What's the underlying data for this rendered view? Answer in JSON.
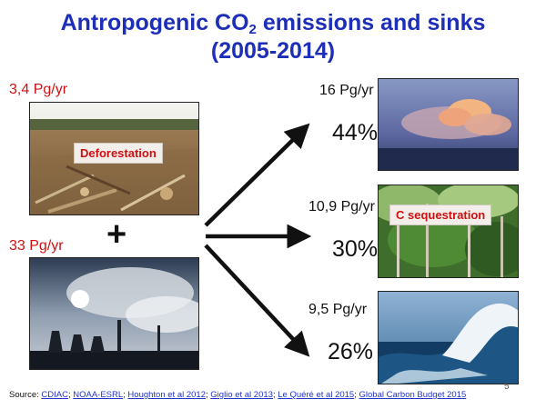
{
  "title": {
    "line1_prefix": "Antropogenic CO",
    "line1_sub": "2",
    "line1_suffix": " emissions and sinks",
    "line2": "(2005-2014)"
  },
  "sources": {
    "deforestation_value": "3,4 Pg/yr",
    "deforestation_label": "Deforestation",
    "plus": "+",
    "fossil_value": "33 Pg/yr"
  },
  "sinks": {
    "atmosphere_value": "16 Pg/yr",
    "atmosphere_percent": "44%",
    "land_value": "10,9 Pg/yr",
    "land_label": "C sequestration",
    "land_percent": "30%",
    "ocean_value": "9,5 Pg/yr",
    "ocean_percent": "26%"
  },
  "footer": {
    "prefix": "Source: ",
    "links": [
      "CDIAC",
      "NOAA-ESRL",
      "Houghton  et al 2012",
      "Giglio et al 2013",
      "Le Quéré et al 2015",
      "Global Carbon Budget 2015"
    ],
    "separator": "; ",
    "page_number": "5"
  }
}
